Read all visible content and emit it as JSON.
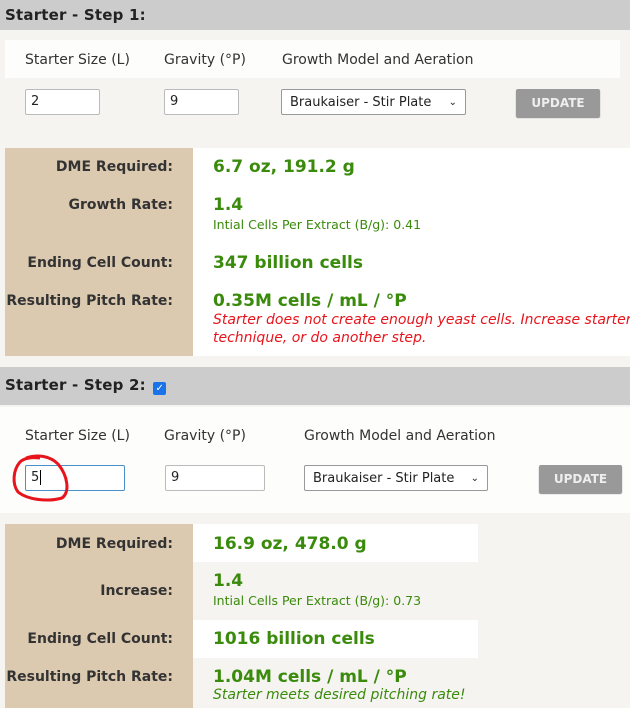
{
  "step1": {
    "title": "Starter - Step 1:",
    "labels": {
      "size": "Starter Size (L)",
      "gravity": "Gravity (°P)",
      "model": "Growth Model and Aeration"
    },
    "size_value": "2",
    "gravity_value": "9",
    "model_value": "Braukaiser - Stir Plate",
    "update_label": "UPDATE",
    "results": {
      "dme_label": "DME Required:",
      "dme_value": "6.7 oz, 191.2 g",
      "growth_label": "Growth Rate:",
      "growth_value": "1.4",
      "growth_sub": "Intial Cells Per Extract (B/g): 0.41",
      "cells_label": "Ending Cell Count:",
      "cells_value": "347 billion cells",
      "pitch_label": "Resulting Pitch Rate:",
      "pitch_value": "0.35M cells / mL / °P",
      "message_line1": "Starter does not create enough yeast cells. Increase starter s",
      "message_line2": "technique, or do another step."
    }
  },
  "step2": {
    "title": "Starter - Step 2:",
    "enabled": true,
    "labels": {
      "size": "Starter Size (L)",
      "gravity": "Gravity (°P)",
      "model": "Growth Model and Aeration"
    },
    "size_value": "5",
    "gravity_value": "9",
    "model_value": "Braukaiser - Stir Plate",
    "update_label": "UPDATE",
    "results": {
      "dme_label": "DME Required:",
      "dme_value": "16.9 oz, 478.0 g",
      "growth_label": "Increase:",
      "growth_value": "1.4",
      "growth_sub": "Intial Cells Per Extract (B/g): 0.73",
      "cells_label": "Ending Cell Count:",
      "cells_value": "1016 billion cells",
      "pitch_label": "Resulting Pitch Rate:",
      "pitch_value": "1.04M cells / mL / °P",
      "message": "Starter meets desired pitching rate!"
    }
  },
  "colors": {
    "accent_green": "#3a8a0c",
    "warning_red": "#e8141c",
    "label_panel": "#dccab0",
    "annotation": "#e8141c"
  }
}
